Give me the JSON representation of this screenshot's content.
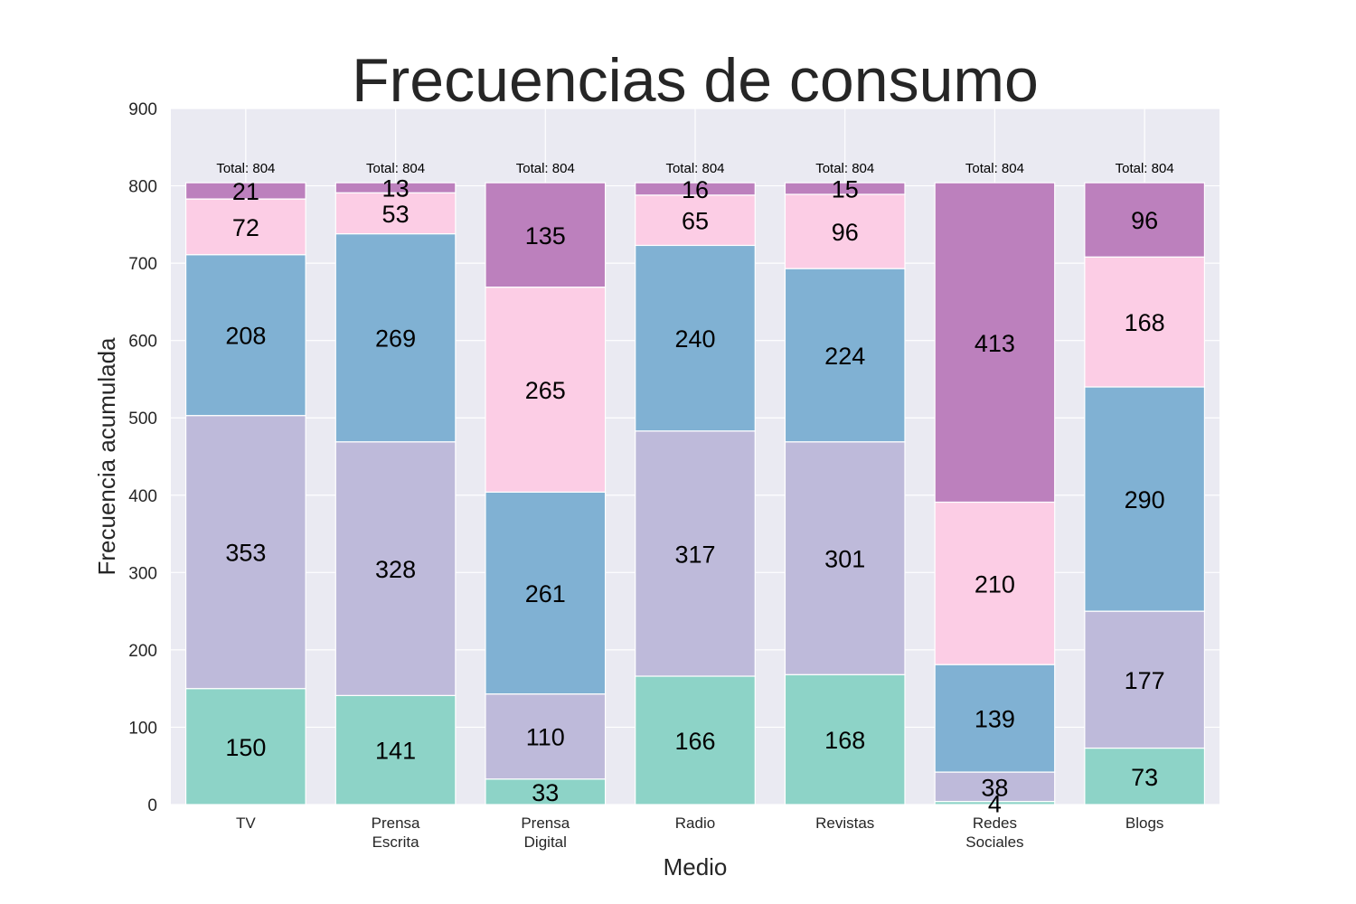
{
  "chart_data": {
    "type": "bar",
    "stacked": true,
    "title": "Frecuencias de consumo",
    "xlabel": "Medio",
    "ylabel": "Frecuencia acumulada",
    "ylim": [
      0,
      900
    ],
    "yticks": [
      0,
      100,
      200,
      300,
      400,
      500,
      600,
      700,
      800,
      900
    ],
    "grid": true,
    "categories": [
      [
        "TV"
      ],
      [
        "Prensa",
        "Escrita"
      ],
      [
        "Prensa",
        "Digital"
      ],
      [
        "Radio"
      ],
      [
        "Revistas"
      ],
      [
        "Redes",
        "Sociales"
      ],
      [
        "Blogs"
      ]
    ],
    "series": [
      {
        "color": "#8dd3c7",
        "values": [
          150,
          141,
          33,
          166,
          168,
          4,
          73
        ]
      },
      {
        "color": "#bebada",
        "values": [
          353,
          328,
          110,
          317,
          301,
          38,
          177
        ]
      },
      {
        "color": "#80b1d3",
        "values": [
          208,
          269,
          261,
          240,
          224,
          139,
          290
        ]
      },
      {
        "color": "#fccde5",
        "values": [
          72,
          53,
          265,
          65,
          96,
          210,
          168
        ]
      },
      {
        "color": "#bc80bd",
        "values": [
          21,
          13,
          135,
          16,
          15,
          413,
          96
        ]
      }
    ],
    "totals": [
      "Total: 804",
      "Total: 804",
      "Total: 804",
      "Total: 804",
      "Total: 804",
      "Total: 804",
      "Total: 804"
    ],
    "colors": {
      "plot_background": "#eaeaf2",
      "grid": "#ffffff",
      "text": "#262626"
    }
  }
}
